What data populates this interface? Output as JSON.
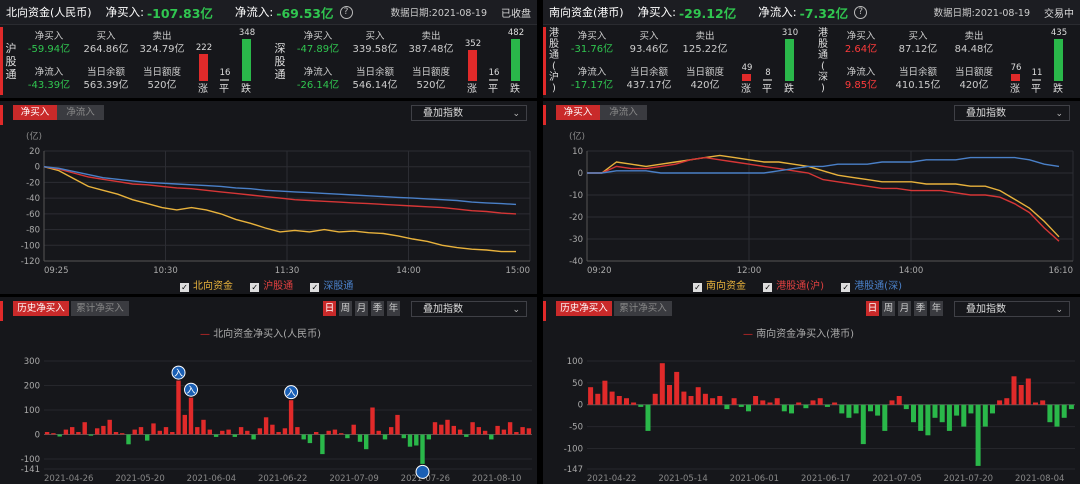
{
  "north": {
    "title": "北向资金(人民币)",
    "net_buy_label": "净买入:",
    "net_buy_value": "-107.83亿",
    "net_inflow_label": "净流入:",
    "net_inflow_value": "-69.53亿",
    "date": "数据日期:2021-08-19",
    "status": "已收盘",
    "markets": [
      {
        "name": "沪股通",
        "net_buy_label": "净买入",
        "net_buy": "-59.94亿",
        "buy_label": "买入",
        "buy": "264.86亿",
        "sell_label": "卖出",
        "sell": "324.79亿",
        "net_inflow_label": "净流入",
        "net_inflow": "-43.39亿",
        "balance_label": "当日余额",
        "balance": "563.39亿",
        "quota_label": "当日额度",
        "quota": "520亿",
        "up": 222,
        "flat": 16,
        "down": 348
      },
      {
        "name": "深股通",
        "net_buy_label": "净买入",
        "net_buy": "-47.89亿",
        "buy_label": "买入",
        "buy": "339.58亿",
        "sell_label": "卖出",
        "sell": "387.48亿",
        "net_inflow_label": "净流入",
        "net_inflow": "-26.14亿",
        "balance_label": "当日余额",
        "balance": "546.14亿",
        "quota_label": "当日额度",
        "quota": "520亿",
        "up": 352,
        "flat": 16,
        "down": 482
      }
    ]
  },
  "south": {
    "title": "南向资金(港币)",
    "net_buy_label": "净买入:",
    "net_buy_value": "-29.12亿",
    "net_inflow_label": "净流入:",
    "net_inflow_value": "-7.32亿",
    "date": "数据日期:2021-08-19",
    "status": "交易中",
    "markets": [
      {
        "name": "港股通(沪)",
        "net_buy_label": "净买入",
        "net_buy": "-31.76亿",
        "buy_label": "买入",
        "buy": "93.46亿",
        "sell_label": "卖出",
        "sell": "125.22亿",
        "net_inflow_label": "净流入",
        "net_inflow": "-17.17亿",
        "balance_label": "当日余额",
        "balance": "437.17亿",
        "quota_label": "当日额度",
        "quota": "420亿",
        "up": 49,
        "flat": 8,
        "down": 310
      },
      {
        "name": "港股通(深)",
        "net_buy_label": "净买入",
        "net_buy": "2.64亿",
        "buy_label": "买入",
        "buy": "87.12亿",
        "sell_label": "卖出",
        "sell": "84.48亿",
        "net_inflow_label": "净流入",
        "net_inflow": "9.85亿",
        "balance_label": "当日余额",
        "balance": "410.15亿",
        "quota_label": "当日额度",
        "quota": "420亿",
        "up": 76,
        "flat": 11,
        "down": 435
      }
    ]
  },
  "labels": {
    "up": "涨",
    "flat": "平",
    "down": "跌",
    "tab_net_buy": "净买入",
    "tab_net_inflow": "净流入",
    "overlay_index": "叠加指数",
    "unit": "(亿)",
    "tab_hist_net_buy": "历史净买入",
    "tab_cum_net_buy": "累计净买入",
    "period_day": "日",
    "period_week": "周",
    "period_month": "月",
    "period_quarter": "季",
    "period_year": "年",
    "north_hist_legend": "北向资金净买入(人民币)",
    "south_hist_legend": "南向资金净买入(港币)",
    "event_marker": "入"
  },
  "colors": {
    "up": "#e02a2a",
    "down": "#2ab84a",
    "north_total": "#e8b23c",
    "sh": "#d63636",
    "sz": "#4a80c8",
    "bg": "#16171b"
  },
  "chart_data": [
    {
      "type": "line",
      "ylim": [
        -120,
        20
      ],
      "yticks": [
        20,
        0,
        -20,
        -40,
        -60,
        -80,
        -100,
        -120
      ],
      "xtick_labels": [
        "09:25",
        "10:30",
        "11:30",
        "14:00",
        "15:00"
      ],
      "series": [
        {
          "name": "北向资金",
          "color": "#e8b23c",
          "values": [
            0,
            -5,
            -15,
            -25,
            -30,
            -35,
            -42,
            -47,
            -52,
            -55,
            -52,
            -55,
            -60,
            -67,
            -72,
            -78,
            -83,
            -81,
            -83,
            -80,
            -83,
            -82,
            -84,
            -85,
            -88,
            -92,
            -95,
            -100,
            -103,
            -105,
            -106,
            -108,
            -108
          ]
        },
        {
          "name": "沪股通",
          "color": "#d63636",
          "values": [
            0,
            -3,
            -8,
            -13,
            -16,
            -19,
            -22,
            -23,
            -25,
            -27,
            -28,
            -30,
            -32,
            -34,
            -36,
            -38,
            -40,
            -42,
            -43,
            -44,
            -45,
            -46,
            -47,
            -48,
            -49,
            -50,
            -51,
            -52,
            -54,
            -56,
            -57,
            -59,
            -60
          ]
        },
        {
          "name": "深股通",
          "color": "#4a80c8",
          "values": [
            0,
            -2,
            -6,
            -10,
            -14,
            -16,
            -18,
            -20,
            -21,
            -22,
            -23,
            -24,
            -25,
            -27,
            -28,
            -30,
            -31,
            -32,
            -33,
            -34,
            -35,
            -36,
            -37,
            -38,
            -39,
            -40,
            -41,
            -42,
            -43,
            -45,
            -46,
            -47,
            -48
          ]
        }
      ]
    },
    {
      "type": "line",
      "ylim": [
        -40,
        10
      ],
      "yticks": [
        10,
        0,
        -10,
        -20,
        -30,
        -40
      ],
      "xtick_labels": [
        "09:20",
        "12:00",
        "14:00",
        "16:10"
      ],
      "series": [
        {
          "name": "南向资金",
          "color": "#e8b23c",
          "values": [
            0,
            0,
            5,
            4,
            3,
            4,
            5,
            6,
            7,
            8,
            7,
            6,
            5,
            5,
            4,
            3,
            1,
            -1,
            -2,
            -3,
            -4,
            -4,
            -4,
            -5,
            -5,
            -5,
            -6,
            -6,
            -8,
            -12,
            -16,
            -22,
            -29
          ]
        },
        {
          "name": "港股通(沪)",
          "color": "#d63636",
          "values": [
            0,
            0,
            3,
            2,
            2,
            3,
            4,
            6,
            7,
            6,
            5,
            4,
            3,
            2,
            1,
            0,
            -3,
            -4,
            -5,
            -6,
            -7,
            -7,
            -8,
            -8,
            -8,
            -9,
            -10,
            -10,
            -11,
            -14,
            -18,
            -25,
            -31
          ]
        },
        {
          "name": "港股通(深)",
          "color": "#4a80c8",
          "values": [
            0,
            0,
            1,
            1,
            1,
            0,
            0,
            0,
            0,
            0,
            0,
            0,
            0,
            1,
            2,
            3,
            3,
            4,
            4,
            4,
            5,
            5,
            5,
            6,
            6,
            6,
            7,
            7,
            7,
            7,
            6,
            4,
            3
          ]
        }
      ]
    },
    {
      "type": "bar",
      "title": "北向资金净买入(人民币)",
      "ylim": [
        -141,
        300
      ],
      "yticks": [
        300,
        200,
        100,
        0,
        -100,
        -141
      ],
      "xtick_labels": [
        "2021-04-26",
        "2021-05-20",
        "2021-06-04",
        "2021-06-22",
        "2021-07-09",
        "2021-07-26",
        "2021-08-10"
      ],
      "values": [
        10,
        5,
        -8,
        20,
        30,
        10,
        50,
        -5,
        25,
        35,
        60,
        10,
        5,
        -40,
        20,
        30,
        -25,
        45,
        15,
        30,
        10,
        220,
        80,
        150,
        30,
        60,
        20,
        -10,
        15,
        20,
        -10,
        30,
        15,
        -20,
        25,
        70,
        40,
        10,
        25,
        140,
        30,
        -20,
        -35,
        10,
        -80,
        15,
        20,
        5,
        -15,
        40,
        -30,
        -60,
        110,
        15,
        -20,
        30,
        80,
        -15,
        -50,
        -45,
        -120,
        -20,
        50,
        40,
        60,
        35,
        20,
        -10,
        50,
        30,
        15,
        -20,
        35,
        20,
        50,
        10,
        30,
        25
      ]
    },
    {
      "type": "bar",
      "title": "南向资金净买入(港币)",
      "ylim": [
        -147,
        100
      ],
      "yticks": [
        100,
        50,
        0,
        -50,
        -100,
        -147
      ],
      "xtick_labels": [
        "2021-04-22",
        "2021-05-14",
        "2021-06-01",
        "2021-06-17",
        "2021-07-05",
        "2021-07-20",
        "2021-08-04"
      ],
      "values": [
        40,
        25,
        55,
        30,
        20,
        15,
        5,
        -5,
        -60,
        25,
        95,
        45,
        75,
        30,
        20,
        40,
        25,
        15,
        20,
        -10,
        15,
        -5,
        -15,
        20,
        10,
        5,
        15,
        -15,
        -20,
        5,
        -8,
        10,
        15,
        -5,
        5,
        -20,
        -30,
        -20,
        -90,
        -15,
        -25,
        -60,
        10,
        20,
        -10,
        -40,
        -60,
        -70,
        -30,
        -40,
        -60,
        -25,
        -50,
        -20,
        -140,
        -50,
        -20,
        10,
        15,
        65,
        45,
        60,
        5,
        10,
        -40,
        -50,
        -30,
        -10
      ]
    }
  ]
}
